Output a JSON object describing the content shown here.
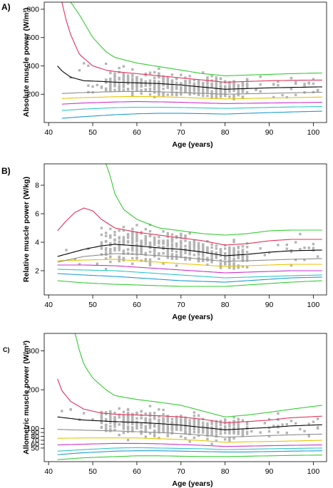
{
  "chart_data": [
    {
      "type": "scatter",
      "panel_label": "A)",
      "xlabel": "Age (years)",
      "ylabel": "Absolute muscle power (W/m²)",
      "xlim": [
        39,
        103
      ],
      "ylim": [
        0,
        850
      ],
      "xticks": [
        40,
        50,
        60,
        70,
        80,
        90,
        100
      ],
      "yticks": [
        200,
        400,
        600,
        800
      ],
      "grid": false,
      "series": [
        {
          "color": "#1f9bd6",
          "x": [
            43,
            48,
            55,
            60,
            65,
            70,
            75,
            80,
            85,
            90,
            95,
            102
          ],
          "y": [
            30,
            42,
            55,
            62,
            65,
            65,
            63,
            60,
            65,
            70,
            75,
            80
          ]
        },
        {
          "color": "#2dc6c6",
          "x": [
            43,
            48,
            55,
            60,
            65,
            70,
            75,
            80,
            85,
            90,
            95,
            102
          ],
          "y": [
            85,
            95,
            105,
            108,
            108,
            106,
            103,
            100,
            103,
            107,
            110,
            113
          ]
        },
        {
          "color": "#cc33cc",
          "x": [
            43,
            48,
            55,
            60,
            65,
            70,
            75,
            80,
            85,
            90,
            95,
            102
          ],
          "y": [
            130,
            138,
            145,
            148,
            146,
            143,
            138,
            134,
            136,
            138,
            140,
            143
          ]
        },
        {
          "color": "#e8c400",
          "x": [
            43,
            48,
            55,
            60,
            65,
            70,
            75,
            80,
            85,
            90,
            95,
            102
          ],
          "y": [
            170,
            176,
            182,
            184,
            182,
            178,
            172,
            167,
            170,
            173,
            176,
            180
          ]
        },
        {
          "color": "#8c8c8c",
          "x": [
            43,
            48,
            55,
            60,
            65,
            70,
            75,
            80,
            85,
            90,
            95,
            102
          ],
          "y": [
            205,
            212,
            218,
            220,
            217,
            212,
            206,
            200,
            203,
            206,
            210,
            214
          ]
        },
        {
          "color": "#000000",
          "x": [
            42,
            43,
            45,
            48,
            52,
            55,
            60,
            65,
            70,
            75,
            80,
            85,
            90,
            95,
            102
          ],
          "y": [
            400,
            365,
            320,
            295,
            290,
            285,
            280,
            275,
            265,
            250,
            235,
            240,
            245,
            248,
            252
          ]
        },
        {
          "color": "#e0335a",
          "x": [
            43,
            44,
            45,
            47,
            50,
            53,
            55,
            60,
            65,
            70,
            75,
            80,
            85,
            90,
            95,
            102
          ],
          "y": [
            850,
            720,
            620,
            480,
            400,
            370,
            360,
            345,
            330,
            315,
            300,
            285,
            290,
            295,
            298,
            300
          ]
        },
        {
          "color": "#33cc33",
          "x": [
            45,
            47,
            50,
            53,
            55,
            60,
            65,
            70,
            75,
            80,
            85,
            90,
            95,
            102
          ],
          "y": [
            850,
            760,
            600,
            500,
            460,
            420,
            395,
            370,
            345,
            330,
            335,
            340,
            345,
            350
          ]
        }
      ]
    },
    {
      "type": "scatter",
      "panel_label": "B)",
      "xlabel": "Age (years)",
      "ylabel": "Relative muscle power (W/kg)",
      "xlim": [
        39,
        103
      ],
      "ylim": [
        0.3,
        9.5
      ],
      "xticks": [
        40,
        50,
        60,
        70,
        80,
        90,
        100
      ],
      "yticks": [
        2,
        4,
        6,
        8
      ],
      "grid": false,
      "series": [
        {
          "color": "#33cc33",
          "x": [
            42,
            48,
            55,
            60,
            65,
            70,
            75,
            80,
            85,
            90,
            95,
            102
          ],
          "y": [
            1.3,
            1.15,
            1.05,
            1.0,
            0.95,
            0.9,
            0.9,
            0.9,
            1.0,
            1.1,
            1.2,
            1.3
          ]
        },
        {
          "color": "#1f9bd6",
          "x": [
            42,
            48,
            55,
            60,
            65,
            70,
            75,
            80,
            85,
            90,
            95,
            102
          ],
          "y": [
            1.8,
            1.7,
            1.6,
            1.5,
            1.4,
            1.3,
            1.25,
            1.2,
            1.3,
            1.4,
            1.5,
            1.55
          ]
        },
        {
          "color": "#2dc6c6",
          "x": [
            42,
            48,
            55,
            60,
            65,
            70,
            75,
            80,
            85,
            90,
            95,
            102
          ],
          "y": [
            2.1,
            2.05,
            2.0,
            1.9,
            1.8,
            1.7,
            1.6,
            1.5,
            1.55,
            1.6,
            1.65,
            1.7
          ]
        },
        {
          "color": "#cc33cc",
          "x": [
            42,
            48,
            55,
            60,
            65,
            70,
            75,
            80,
            85,
            90,
            95,
            102
          ],
          "y": [
            2.4,
            2.4,
            2.35,
            2.25,
            2.15,
            2.05,
            1.95,
            1.85,
            1.9,
            1.95,
            2.0,
            2.0
          ]
        },
        {
          "color": "#e8c400",
          "x": [
            42,
            48,
            55,
            60,
            65,
            70,
            75,
            80,
            85,
            90,
            95,
            102
          ],
          "y": [
            2.7,
            2.75,
            2.8,
            2.7,
            2.6,
            2.5,
            2.4,
            2.3,
            2.35,
            2.4,
            2.45,
            2.45
          ]
        },
        {
          "color": "#8c8c8c",
          "x": [
            42,
            48,
            55,
            60,
            65,
            70,
            75,
            80,
            85,
            90,
            95,
            102
          ],
          "y": [
            2.6,
            3.0,
            3.2,
            3.15,
            3.05,
            2.95,
            2.8,
            2.65,
            2.7,
            2.75,
            2.8,
            2.85
          ]
        },
        {
          "color": "#000000",
          "x": [
            42,
            45,
            48,
            52,
            55,
            60,
            65,
            70,
            75,
            80,
            85,
            90,
            95,
            102
          ],
          "y": [
            3.0,
            3.25,
            3.5,
            3.75,
            3.85,
            3.75,
            3.6,
            3.5,
            3.3,
            3.05,
            3.15,
            3.3,
            3.4,
            3.45
          ]
        },
        {
          "color": "#e0335a",
          "x": [
            42,
            44,
            46,
            48,
            50,
            52,
            55,
            60,
            65,
            70,
            75,
            80,
            85,
            90,
            95,
            102
          ],
          "y": [
            4.8,
            5.5,
            6.1,
            6.4,
            6.2,
            5.6,
            5.0,
            4.7,
            4.5,
            4.3,
            4.1,
            3.8,
            3.9,
            4.1,
            4.2,
            4.2
          ]
        },
        {
          "color": "#33cc33",
          "x": [
            53,
            54,
            55,
            57,
            60,
            65,
            70,
            75,
            80,
            85,
            90,
            95,
            102
          ],
          "y": [
            9.5,
            8.6,
            7.4,
            6.3,
            5.6,
            5.0,
            4.8,
            4.6,
            4.5,
            4.6,
            4.8,
            4.85,
            4.85
          ]
        }
      ]
    },
    {
      "type": "scatter",
      "panel_label": "C)",
      "xlabel": "Age (years)",
      "ylabel": "Allometric muscle power (W/m²)",
      "xlim": [
        39,
        103
      ],
      "ylim": [
        15,
        345
      ],
      "xticks": [
        40,
        50,
        60,
        70,
        80,
        90,
        100
      ],
      "yticks": [
        50,
        100,
        200,
        300
      ],
      "yticks_minor_labels": [
        60,
        70,
        80,
        90
      ],
      "grid": false,
      "series": [
        {
          "color": "#33cc33",
          "x": [
            42,
            48,
            55,
            60,
            65,
            70,
            75,
            80,
            85,
            90,
            95,
            102
          ],
          "y": [
            20,
            25,
            28,
            30,
            30,
            29,
            28,
            28,
            29,
            30,
            31,
            32
          ]
        },
        {
          "color": "#1f9bd6",
          "x": [
            42,
            48,
            55,
            60,
            65,
            70,
            75,
            80,
            85,
            90,
            95,
            102
          ],
          "y": [
            33,
            38,
            42,
            43,
            43,
            42,
            41,
            40,
            40,
            41,
            42,
            43
          ]
        },
        {
          "color": "#2dc6c6",
          "x": [
            42,
            48,
            55,
            60,
            65,
            70,
            75,
            80,
            85,
            90,
            95,
            102
          ],
          "y": [
            42,
            46,
            50,
            51,
            50,
            49,
            48,
            46,
            47,
            48,
            49,
            50
          ]
        },
        {
          "color": "#cc33cc",
          "x": [
            42,
            48,
            55,
            60,
            65,
            70,
            75,
            80,
            85,
            90,
            95,
            102
          ],
          "y": [
            58,
            60,
            62,
            62,
            61,
            59,
            57,
            54,
            55,
            56,
            57,
            58
          ]
        },
        {
          "color": "#e8c400",
          "x": [
            42,
            48,
            55,
            60,
            65,
            70,
            75,
            80,
            85,
            90,
            95,
            102
          ],
          "y": [
            75,
            76,
            76,
            76,
            74,
            72,
            69,
            65,
            66,
            67,
            68,
            70
          ]
        },
        {
          "color": "#8c8c8c",
          "x": [
            42,
            48,
            55,
            60,
            65,
            70,
            75,
            80,
            85,
            90,
            95,
            102
          ],
          "y": [
            98,
            96,
            94,
            92,
            90,
            87,
            83,
            78,
            80,
            82,
            84,
            86
          ]
        },
        {
          "color": "#000000",
          "x": [
            42,
            48,
            55,
            60,
            65,
            70,
            75,
            80,
            85,
            90,
            95,
            102
          ],
          "y": [
            130,
            122,
            118,
            116,
            113,
            109,
            103,
            97,
            100,
            103,
            107,
            110
          ]
        },
        {
          "color": "#e0335a",
          "x": [
            42,
            43,
            45,
            48,
            52,
            55,
            60,
            65,
            70,
            75,
            80,
            85,
            90,
            95,
            102
          ],
          "y": [
            228,
            198,
            170,
            150,
            140,
            137,
            135,
            133,
            130,
            124,
            115,
            118,
            122,
            128,
            132
          ]
        },
        {
          "color": "#33cc33",
          "x": [
            46,
            47,
            48,
            50,
            53,
            55,
            60,
            65,
            70,
            75,
            80,
            85,
            90,
            95,
            102
          ],
          "y": [
            345,
            300,
            265,
            230,
            200,
            185,
            175,
            168,
            160,
            145,
            130,
            135,
            142,
            150,
            160
          ]
        }
      ]
    }
  ]
}
